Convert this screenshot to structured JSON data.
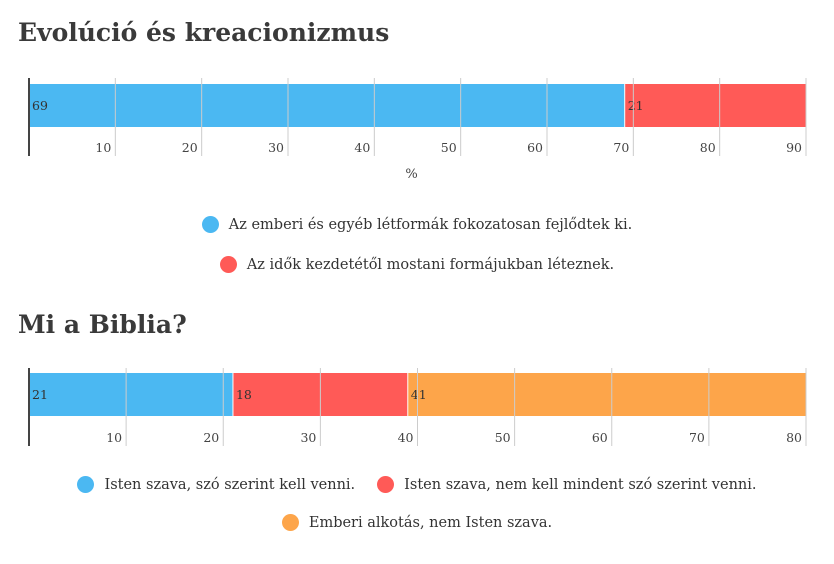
{
  "chart_data": [
    {
      "type": "bar",
      "orientation": "horizontal",
      "stacked": true,
      "title": "Evolúció és kreacionizmus",
      "xlabel": "%",
      "xlim": [
        0,
        90
      ],
      "ticks": [
        10,
        20,
        30,
        40,
        50,
        60,
        70,
        80,
        90
      ],
      "series": [
        {
          "name": "Az emberi és egyéb létformák fokozatosan fejlődtek ki.",
          "values": [
            69
          ],
          "color": "#4bb8f2"
        },
        {
          "name": "Az idők kezdetétől mostani formájukban léteznek.",
          "values": [
            21
          ],
          "color": "#ff5a57"
        }
      ]
    },
    {
      "type": "bar",
      "orientation": "horizontal",
      "stacked": true,
      "title": "Mi a Biblia?",
      "xlabel": "",
      "xlim": [
        0,
        80
      ],
      "ticks": [
        10,
        20,
        30,
        40,
        50,
        60,
        70,
        80
      ],
      "series": [
        {
          "name": "Isten szava, szó szerint kell venni.",
          "values": [
            21
          ],
          "color": "#4bb8f2"
        },
        {
          "name": "Isten szava, nem kell mindent szó szerint venni.",
          "values": [
            18
          ],
          "color": "#ff5a57"
        },
        {
          "name": "Emberi alkotás, nem Isten szava.",
          "values": [
            41
          ],
          "color": "#fda54a"
        }
      ]
    }
  ]
}
